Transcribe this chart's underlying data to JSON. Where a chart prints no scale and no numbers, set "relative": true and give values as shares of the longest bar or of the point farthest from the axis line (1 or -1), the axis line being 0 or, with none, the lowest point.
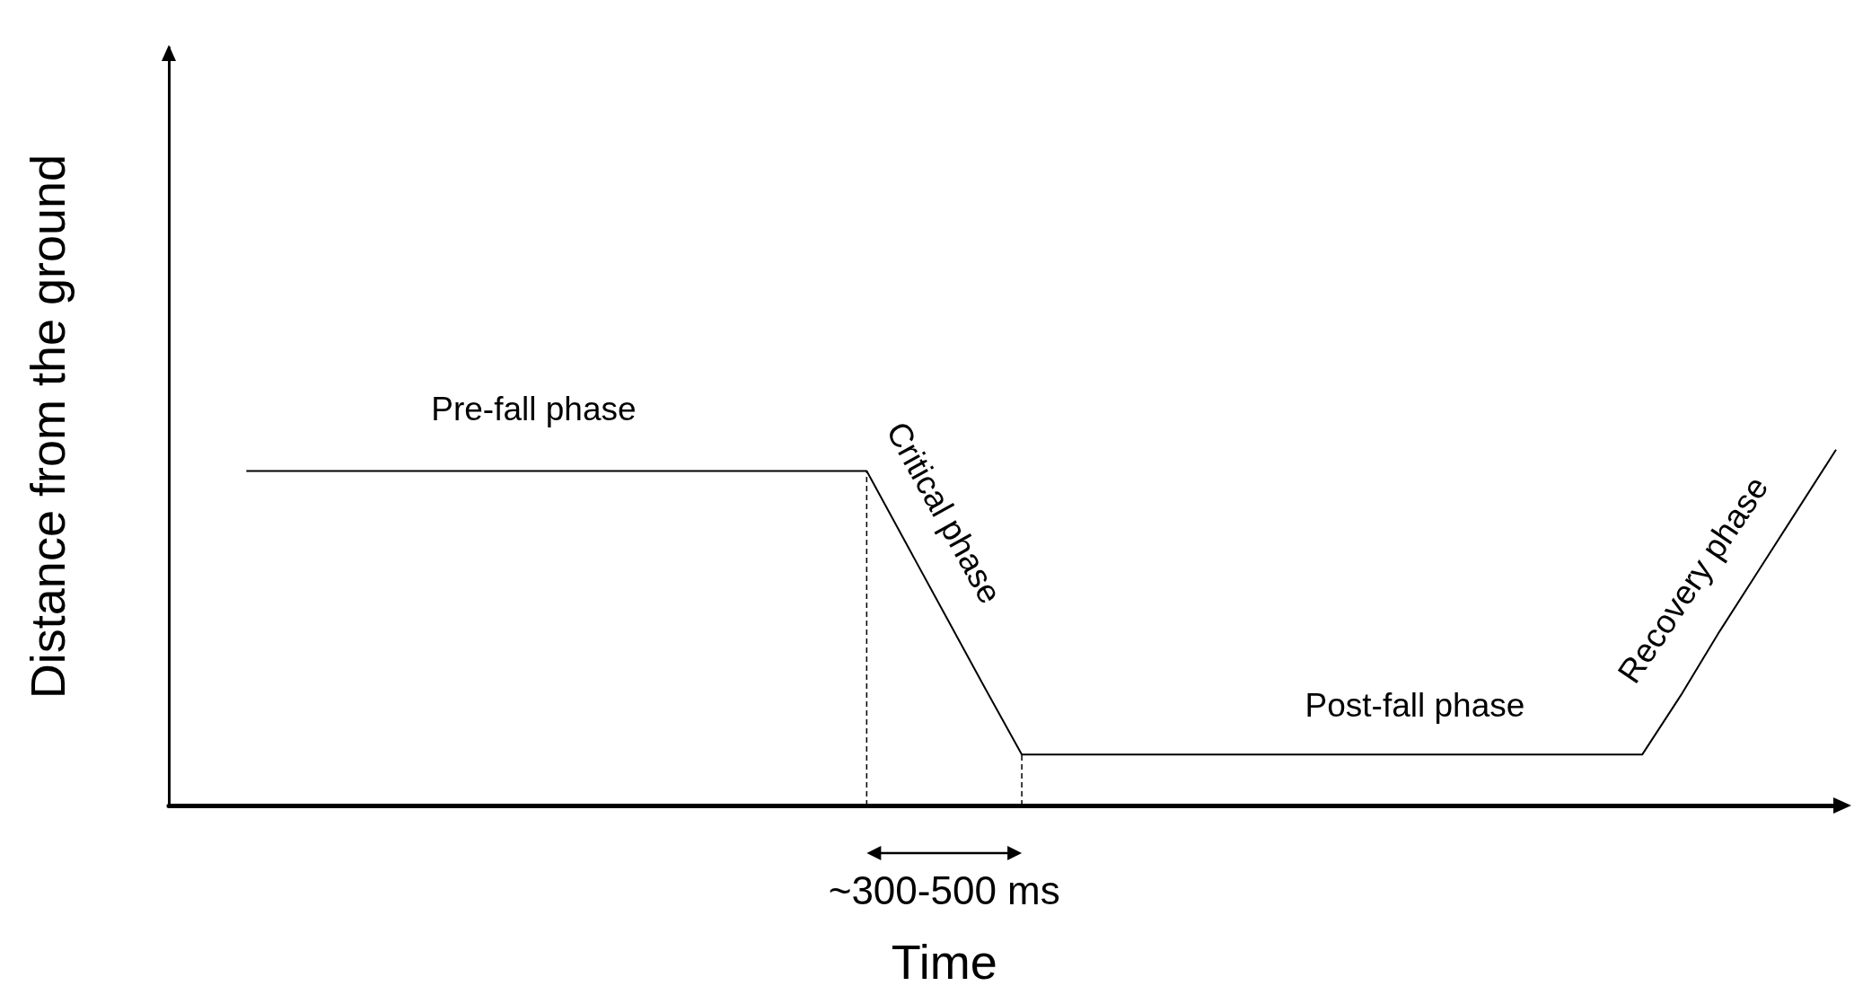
{
  "chart_data": {
    "type": "line",
    "relative": true,
    "color": "#000000",
    "xlabel": "Time",
    "ylabel": "Distance from the ground",
    "categories": [
      null,
      null,
      null,
      null,
      null,
      null,
      null,
      null,
      null,
      null,
      null,
      null,
      null,
      null,
      null,
      null,
      null,
      null,
      null,
      null,
      null,
      null,
      null,
      null,
      null,
      null,
      null,
      null,
      null,
      null,
      null,
      null,
      null,
      null,
      null,
      null,
      null,
      null,
      null,
      null,
      null,
      null,
      null,
      null
    ],
    "values": [
      null,
      null,
      0.94,
      0.94,
      0.94,
      0.94,
      0.94,
      0.94,
      0.94,
      0.94,
      0.94,
      0.94,
      0.94,
      0.94,
      0.94,
      0.94,
      0.94,
      0.94,
      0.94,
      0.74,
      0.54,
      0.34,
      0.143,
      0.143,
      0.143,
      0.143,
      0.143,
      0.143,
      0.143,
      0.143,
      0.143,
      0.143,
      0.143,
      0.143,
      0.143,
      0.143,
      0.143,
      0.143,
      0.143,
      0.31,
      0.49,
      0.66,
      0.83,
      1
    ],
    "marker": "none",
    "line_style": "solid",
    "annotations": [
      "Pre-fall phase",
      "Critical phase",
      "Post-fall phase",
      "Recovery phase",
      "~300-500 ms"
    ]
  }
}
